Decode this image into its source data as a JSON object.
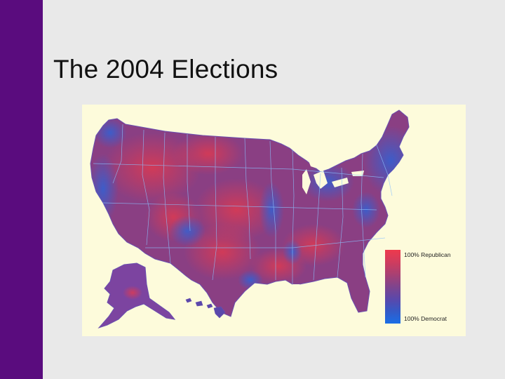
{
  "slide": {
    "title": "The 2004 Elections",
    "accent_color": "#5a0c7e",
    "background_color": "#e9e9e9"
  },
  "map": {
    "background_color": "#fdfbdb",
    "republican_color": "#e8394a",
    "democrat_color": "#1a6ee6",
    "legend": {
      "top_label": "100% Republican",
      "bottom_label": "100% Democrat",
      "gradient": [
        "#ee3a4c",
        "#cf3c5e",
        "#a94072",
        "#7f448d",
        "#5a48ab",
        "#3559c6",
        "#1a6ee6"
      ]
    }
  }
}
